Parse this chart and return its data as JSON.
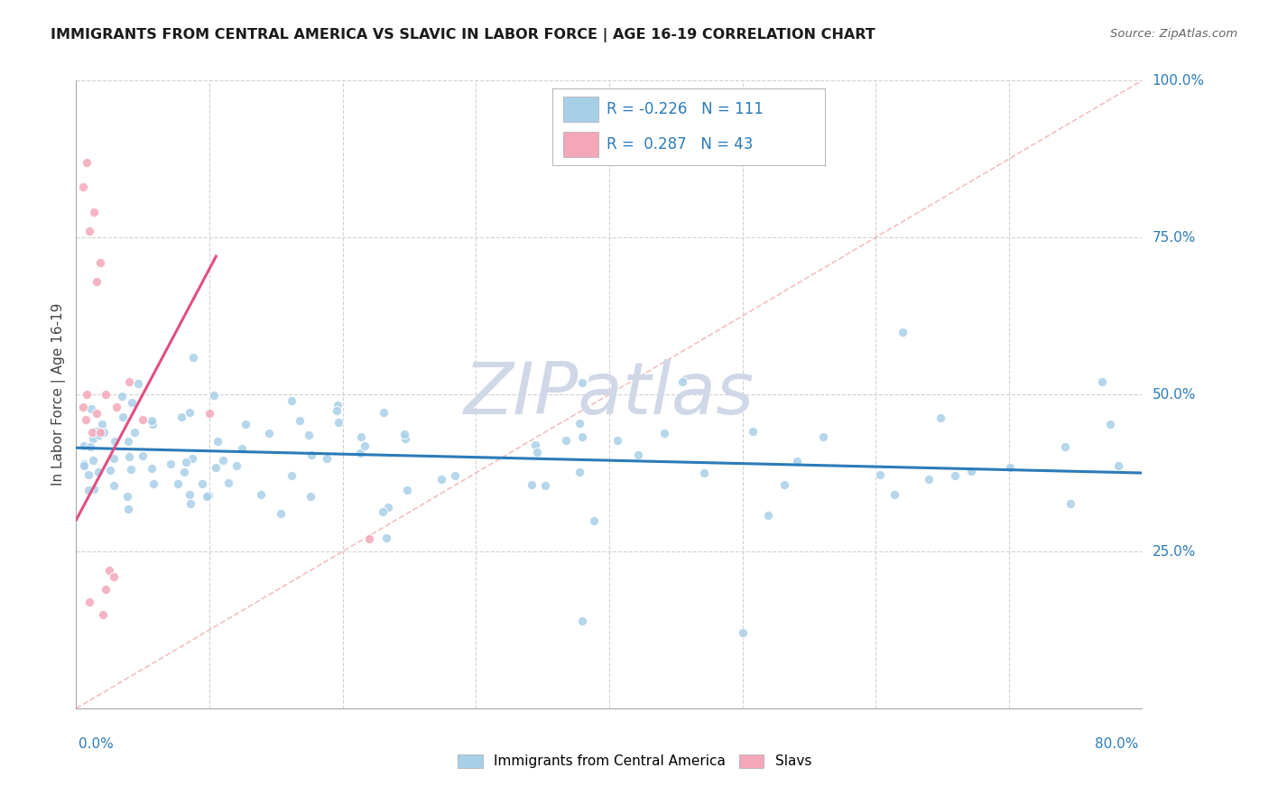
{
  "title": "IMMIGRANTS FROM CENTRAL AMERICA VS SLAVIC IN LABOR FORCE | AGE 16-19 CORRELATION CHART",
  "source": "Source: ZipAtlas.com",
  "ylabel_text": "In Labor Force | Age 16-19",
  "xlabel_text": "Immigrants from Central America",
  "xlim": [
    0.0,
    0.8
  ],
  "ylim": [
    0.0,
    1.0
  ],
  "right_ytick_vals": [
    1.0,
    0.75,
    0.5,
    0.25
  ],
  "right_ytick_labels": [
    "100.0%",
    "75.0%",
    "50.0%",
    "25.0%"
  ],
  "legend_blue_R": "-0.226",
  "legend_blue_N": "111",
  "legend_pink_R": "0.287",
  "legend_pink_N": "43",
  "blue_scatter_color": "#a8cfe8",
  "pink_scatter_color": "#f4a7b9",
  "blue_line_color": "#2b7bba",
  "pink_line_color": "#e05080",
  "diag_line_color": "#f0b0b0",
  "watermark_color": "#d0d8e8",
  "legend_box_color": "#e8f0f8",
  "blue_line_y0": 0.415,
  "blue_line_y1": 0.375,
  "pink_line_x0": 0.0,
  "pink_line_y0": 0.3,
  "pink_line_x1": 0.105,
  "pink_line_y1": 0.72
}
